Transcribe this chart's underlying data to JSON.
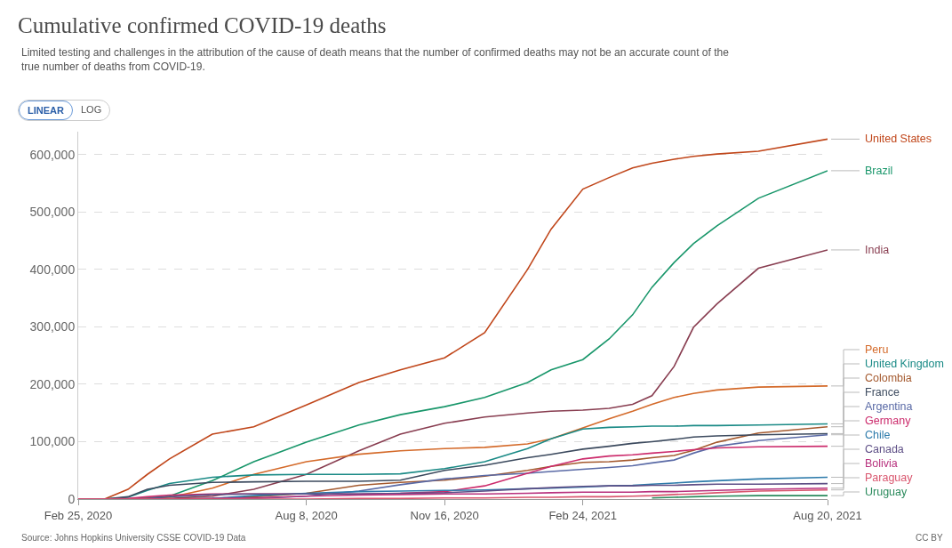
{
  "chart_data": {
    "type": "line",
    "title": "Cumulative confirmed COVID-19 deaths",
    "subtitle": "Limited testing and challenges in the attribution of the cause of death means that the number of confirmed deaths may not be an accurate count of the true number of deaths from COVID-19.",
    "annotations": [
      "Source: Johns Hopkins University CSSE COVID-19 Data",
      "LINEAR",
      "LOG",
      "CC BY"
    ],
    "x": [
      "2020-02-25",
      "2020-03-15",
      "2020-04-01",
      "2020-04-15",
      "2020-05-01",
      "2020-06-01",
      "2020-07-01",
      "2020-08-08",
      "2020-09-15",
      "2020-10-15",
      "2020-11-16",
      "2020-12-15",
      "2021-01-15",
      "2021-02-01",
      "2021-02-24",
      "2021-03-15",
      "2021-04-01",
      "2021-04-15",
      "2021-05-01",
      "2021-05-15",
      "2021-06-01",
      "2021-07-01",
      "2021-08-20"
    ],
    "series": [
      {
        "name": "United States",
        "color": "#c0461a",
        "values": [
          0,
          0,
          17000,
          43000,
          70000,
          113000,
          126000,
          164000,
          203000,
          225000,
          246000,
          290000,
          400000,
          470000,
          540000,
          560000,
          577000,
          585000,
          592000,
          597000,
          601000,
          606000,
          627000
        ]
      },
      {
        "name": "Brazil",
        "color": "#18966a",
        "values": [
          0,
          0,
          0,
          2000,
          5000,
          32000,
          65000,
          99000,
          129000,
          147000,
          161000,
          177000,
          203000,
          225000,
          243000,
          279000,
          321000,
          369000,
          412000,
          445000,
          476000,
          524000,
          572000
        ]
      },
      {
        "name": "India",
        "color": "#883d50",
        "values": [
          0,
          0,
          0,
          0,
          1000,
          5000,
          17000,
          43000,
          84000,
          113000,
          132000,
          143000,
          150000,
          153000,
          155000,
          158000,
          165000,
          180000,
          231000,
          299000,
          340000,
          402000,
          434000
        ]
      },
      {
        "name": "Peru",
        "color": "#d46a2a",
        "values": [
          0,
          0,
          0,
          1000,
          3000,
          19000,
          43000,
          65000,
          78000,
          84000,
          88000,
          90000,
          96000,
          105000,
          124000,
          140000,
          153000,
          165000,
          177000,
          184000,
          190000,
          195000,
          197000
        ]
      },
      {
        "name": "United Kingdom",
        "color": "#1a8a86",
        "values": [
          0,
          0,
          3000,
          15000,
          27000,
          38000,
          42000,
          43000,
          43000,
          44000,
          53000,
          65000,
          88000,
          105000,
          122000,
          125000,
          126000,
          127000,
          127000,
          128000,
          128000,
          129000,
          131000
        ]
      },
      {
        "name": "Colombia",
        "color": "#a4592e",
        "values": [
          0,
          0,
          0,
          0,
          0,
          1000,
          4000,
          10000,
          24000,
          29000,
          33000,
          40000,
          50000,
          57000,
          64000,
          65000,
          68000,
          72000,
          76000,
          85000,
          99000,
          115000,
          126000
        ]
      },
      {
        "name": "France",
        "color": "#3c4a5e",
        "values": [
          0,
          0,
          4000,
          17000,
          24000,
          29000,
          30000,
          31000,
          31000,
          33000,
          50000,
          59000,
          72000,
          78000,
          87000,
          92000,
          97000,
          100000,
          104000,
          108000,
          110000,
          112000,
          114000
        ]
      },
      {
        "name": "Argentina",
        "color": "#5a6aa6",
        "values": [
          0,
          0,
          0,
          0,
          0,
          1000,
          1000,
          5000,
          14000,
          25000,
          35000,
          41000,
          45000,
          48000,
          52000,
          55000,
          58000,
          63000,
          68000,
          80000,
          92000,
          102000,
          112000
        ]
      },
      {
        "name": "Germany",
        "color": "#cc2b6c",
        "values": [
          0,
          0,
          1000,
          4000,
          7000,
          9000,
          9000,
          9000,
          9000,
          10000,
          13000,
          23000,
          45000,
          57000,
          70000,
          75000,
          77000,
          80000,
          83000,
          86000,
          89000,
          91000,
          92000
        ]
      },
      {
        "name": "Chile",
        "color": "#2e7bab",
        "values": [
          null,
          null,
          null,
          null,
          null,
          1000,
          6000,
          10000,
          13000,
          14000,
          15000,
          16000,
          18000,
          19000,
          21000,
          23000,
          24000,
          26000,
          28000,
          30000,
          32000,
          35000,
          38000
        ]
      },
      {
        "name": "Canada",
        "color": "#5e4f86",
        "values": [
          0,
          0,
          0,
          1000,
          4000,
          8000,
          9000,
          9000,
          9000,
          10000,
          11000,
          14000,
          18000,
          20000,
          22000,
          23000,
          23000,
          24000,
          24000,
          25000,
          26000,
          26000,
          27000
        ]
      },
      {
        "name": "Bolivia",
        "color": "#b8327e",
        "values": [
          0,
          0,
          0,
          0,
          0,
          1000,
          2000,
          5000,
          7000,
          8000,
          9000,
          9000,
          10000,
          11000,
          12000,
          12000,
          12000,
          13000,
          13000,
          14000,
          15000,
          17000,
          19000
        ]
      },
      {
        "name": "Paraguay",
        "color": "#d9566e",
        "values": [
          0,
          0,
          0,
          0,
          0,
          0,
          0,
          0,
          1000,
          1000,
          2000,
          2000,
          3000,
          3000,
          4000,
          4000,
          5000,
          6000,
          8000,
          9000,
          11000,
          14000,
          16000
        ]
      },
      {
        "name": "Uruguay",
        "color": "#2a8a5c",
        "x": [
          "2021-04-15",
          "2021-05-01",
          "2021-05-15",
          "2021-06-01",
          "2021-07-01",
          "2021-08-20"
        ],
        "values": [
          2000,
          3000,
          4000,
          5000,
          6000,
          6000
        ]
      }
    ],
    "xlim": [
      "2020-02-25",
      "2021-08-20"
    ],
    "xticks": [
      {
        "value": "2020-02-25",
        "label": "Feb 25, 2020"
      },
      {
        "value": "2020-08-08",
        "label": "Aug 8, 2020"
      },
      {
        "value": "2020-11-16",
        "label": "Nov 16, 2020"
      },
      {
        "value": "2021-02-24",
        "label": "Feb 24, 2021"
      },
      {
        "value": "2021-08-20",
        "label": "Aug 20, 2021"
      }
    ],
    "ylim": [
      0,
      640000
    ],
    "yticks": [
      0,
      {
        "value": 100000,
        "label": "100,000"
      },
      {
        "value": 200000,
        "label": "200,000"
      },
      {
        "value": 300000,
        "label": "300,000"
      },
      {
        "value": 400000,
        "label": "400,000"
      },
      {
        "value": 500000,
        "label": "500,000"
      },
      {
        "value": 600000,
        "label": "600,000"
      }
    ],
    "grid": "y",
    "legend": false
  }
}
